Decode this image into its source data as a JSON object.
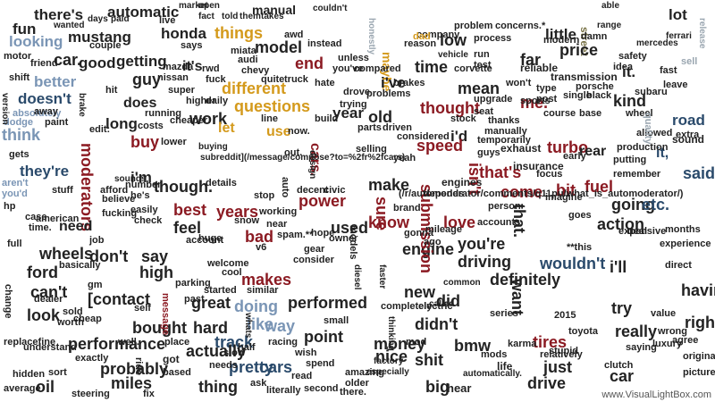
{
  "cloud": {
    "credit": "www.VisualLightBox.com",
    "palette": {
      "black": "#222222",
      "crimson": "#8b1a22",
      "gold": "#d49a1c",
      "navy": "#2a4a6b",
      "steel": "#7a95b5",
      "olive": "#7a7448",
      "gray": "#9aa6b0"
    },
    "words": [
      "there's",
      "automatic",
      "market",
      "open",
      "manual",
      "couldn't",
      "able",
      "lot",
      "fun",
      "wanted",
      "days",
      "paid",
      "fact",
      "told",
      "them",
      "takes",
      "range",
      "release",
      "looking",
      "mustang",
      "honda",
      "things",
      "model",
      "low",
      "vehicle",
      "little",
      "street",
      "car.",
      "good",
      "getting",
      "guy",
      "it's",
      "different",
      "end",
      "maybe",
      "time",
      "far",
      "price",
      "mercedes",
      "ferrari",
      "better",
      "questions",
      "i've",
      "mean",
      "i'm",
      "it.",
      "kind",
      "doesn't",
      "does",
      "work",
      "let",
      "use",
      "year",
      "old",
      "thought",
      "me.",
      "road",
      "think",
      "long",
      "i'd",
      "speed",
      "turbo",
      "rear",
      "it,",
      "sound",
      "they're",
      "buy",
      "moderators",
      "cars.",
      "that's",
      "come",
      "fuel",
      "said",
      "though.",
      "best",
      "years",
      "power",
      "make",
      "isn't",
      "bit",
      "going",
      "etc.",
      "feel",
      "bad",
      "used",
      "know",
      "love",
      "action",
      "need",
      "say",
      "don't",
      "engine",
      "sure",
      "submission",
      "driving",
      "you're",
      "wouldn't",
      "i'll",
      "can't",
      "[contact",
      "makes",
      "performed",
      "did",
      "definitely",
      "that.",
      "having",
      "high",
      "new",
      "try",
      "look",
      "great",
      "bought",
      "doing",
      "like",
      "way",
      "want",
      "really",
      "right",
      "hard",
      "track",
      "point",
      "didn't",
      "tires",
      "performance",
      "actually",
      "pretty",
      "cars",
      "nice",
      "money",
      "shit",
      "bmw",
      "just",
      "car",
      "probably",
      "miles",
      "thing",
      "big",
      "oil",
      "drive",
      "automatically.",
      "wheels",
      "ford",
      "got",
      "life",
      "buying",
      "subreddit](/message/compose?to=%2fr%2fcars)",
      "details",
      "cool",
      "yeah",
      "exhaust",
      "insurance",
      "engines",
      "reliable",
      "transmission",
      "modern",
      "brakes",
      "problems",
      "corvette",
      "company",
      "stock",
      "sports",
      "parts",
      "expensive",
      "experience",
      "porsche",
      "full",
      "hp",
      "american",
      "sounds",
      "2015",
      "toyota",
      "months",
      "whats",
      "called",
      "series",
      "common",
      "especially",
      "factory",
      "steering",
      "average",
      "hidden",
      "based",
      "literally",
      "second",
      "hear",
      "there.",
      "(/r/automoderator/comments/q11pu/what_is_automoderator/)",
      "depends",
      "brand",
      "person",
      "thinking",
      "completely",
      "electric",
      "karma",
      "stupid",
      "picture",
      "original",
      "luxury",
      "wrong",
      "clutch",
      "mods",
      "relatively",
      "parking",
      "account",
      "welcome",
      "started",
      "similar",
      "consider",
      "diesel",
      "faster",
      "accounts",
      "allowed",
      "subaru",
      "mazda",
      "nissan",
      "audi",
      "chevy",
      "quite",
      "truck",
      "instead",
      "awd",
      "honestly",
      "concerns.*",
      "process",
      "problem",
      "reason",
      "dad",
      "test",
      "run",
      "type",
      "black",
      "single",
      "wheel",
      "base",
      "course",
      "thanks",
      "manually",
      "temporarily",
      "guys",
      "early",
      "focus",
      "imagine",
      "remember",
      "putting",
      "production",
      "quality",
      "extra",
      "fucking",
      "job",
      "easily",
      "believe",
      "check",
      "huge",
      "working",
      "near",
      "spam.**",
      "hope",
      "gear",
      "owner",
      "models",
      "gonna",
      "ago",
      "mileage",
      "goes",
      "**this",
      "deal",
      "direct",
      "value",
      "saying",
      "agree",
      "half",
      "mod",
      "fix",
      "ride",
      "needs",
      "slow",
      "past",
      "self",
      "small",
      "worth",
      "cheap",
      "sold",
      "gm",
      "basically",
      "dealer",
      "change",
      "replacefine",
      "understand",
      "sort",
      "exactly",
      "well.",
      "place",
      "racing",
      "wish",
      "spend",
      "amazing",
      "older",
      "read",
      "ask",
      "message",
      "v6",
      "stop",
      "auto",
      "decent",
      "civic",
      "snow",
      "out.",
      "design",
      "he's",
      "number",
      "afford",
      "stuff",
      "case",
      "time.",
      "aren't",
      "you'd",
      "gets",
      "paint",
      "absolutely",
      "dodge",
      "version",
      "away",
      "shift",
      "motor",
      "friend",
      "brake",
      "hit",
      "super",
      "costs",
      "running",
      "cheaper",
      "lower",
      "edit:",
      "says",
      "couple",
      "live",
      "higher",
      "daily",
      "fuck",
      "rwd",
      "miata",
      "hate",
      "you've",
      "unless",
      "compared",
      "drove",
      "trying",
      "seat",
      "build",
      "considered",
      "driven",
      "line",
      "now.",
      "selling",
      "post",
      "won't",
      "damn",
      "upgrade",
      "leave",
      "fast",
      "idea",
      "safety",
      "sell",
      "tell",
      "straight",
      "interior",
      "looked",
      "issue"
    ]
  }
}
